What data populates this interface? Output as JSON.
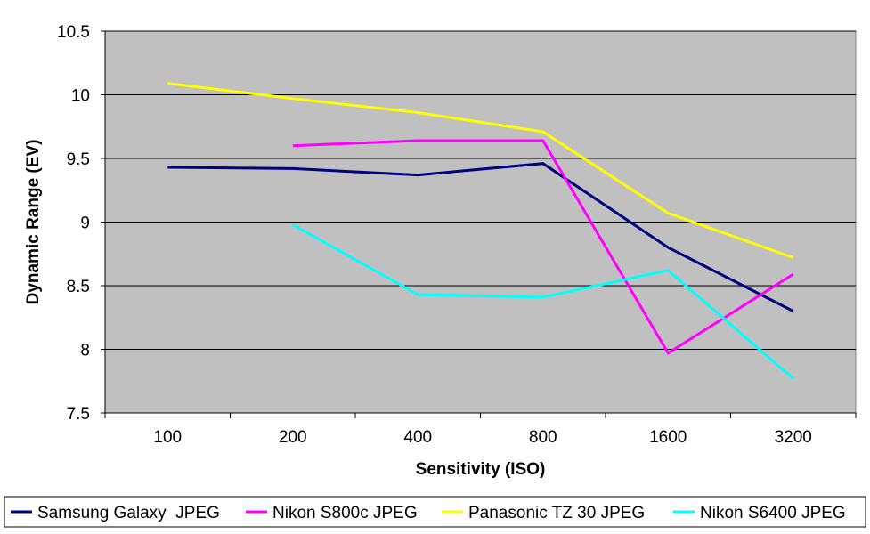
{
  "chart_data": {
    "type": "line",
    "title": "",
    "xlabel": "Sensitivity (ISO)",
    "ylabel": "Dynamic Range (EV)",
    "categories": [
      "100",
      "200",
      "400",
      "800",
      "1600",
      "3200"
    ],
    "ylim": [
      7.5,
      10.5
    ],
    "yticks": [
      "7.5",
      "8",
      "8.5",
      "9",
      "9.5",
      "10",
      "10.5"
    ],
    "grid": true,
    "legend_position": "bottom",
    "plot_background": "#c0c0c0",
    "series": [
      {
        "name": "Samsung Galaxy  JPEG",
        "color": "#000080",
        "values": [
          9.43,
          9.42,
          9.37,
          9.46,
          8.8,
          8.3
        ]
      },
      {
        "name": "Nikon S800c JPEG",
        "color": "#ff00ff",
        "values": [
          null,
          9.6,
          9.64,
          9.64,
          7.97,
          8.59
        ]
      },
      {
        "name": "Panasonic TZ 30 JPEG",
        "color": "#ffff00",
        "values": [
          10.09,
          9.97,
          9.86,
          9.71,
          9.07,
          8.72
        ]
      },
      {
        "name": "Nikon S6400 JPEG",
        "color": "#00ffff",
        "values": [
          null,
          8.98,
          8.43,
          8.41,
          8.62,
          7.77
        ]
      }
    ]
  }
}
